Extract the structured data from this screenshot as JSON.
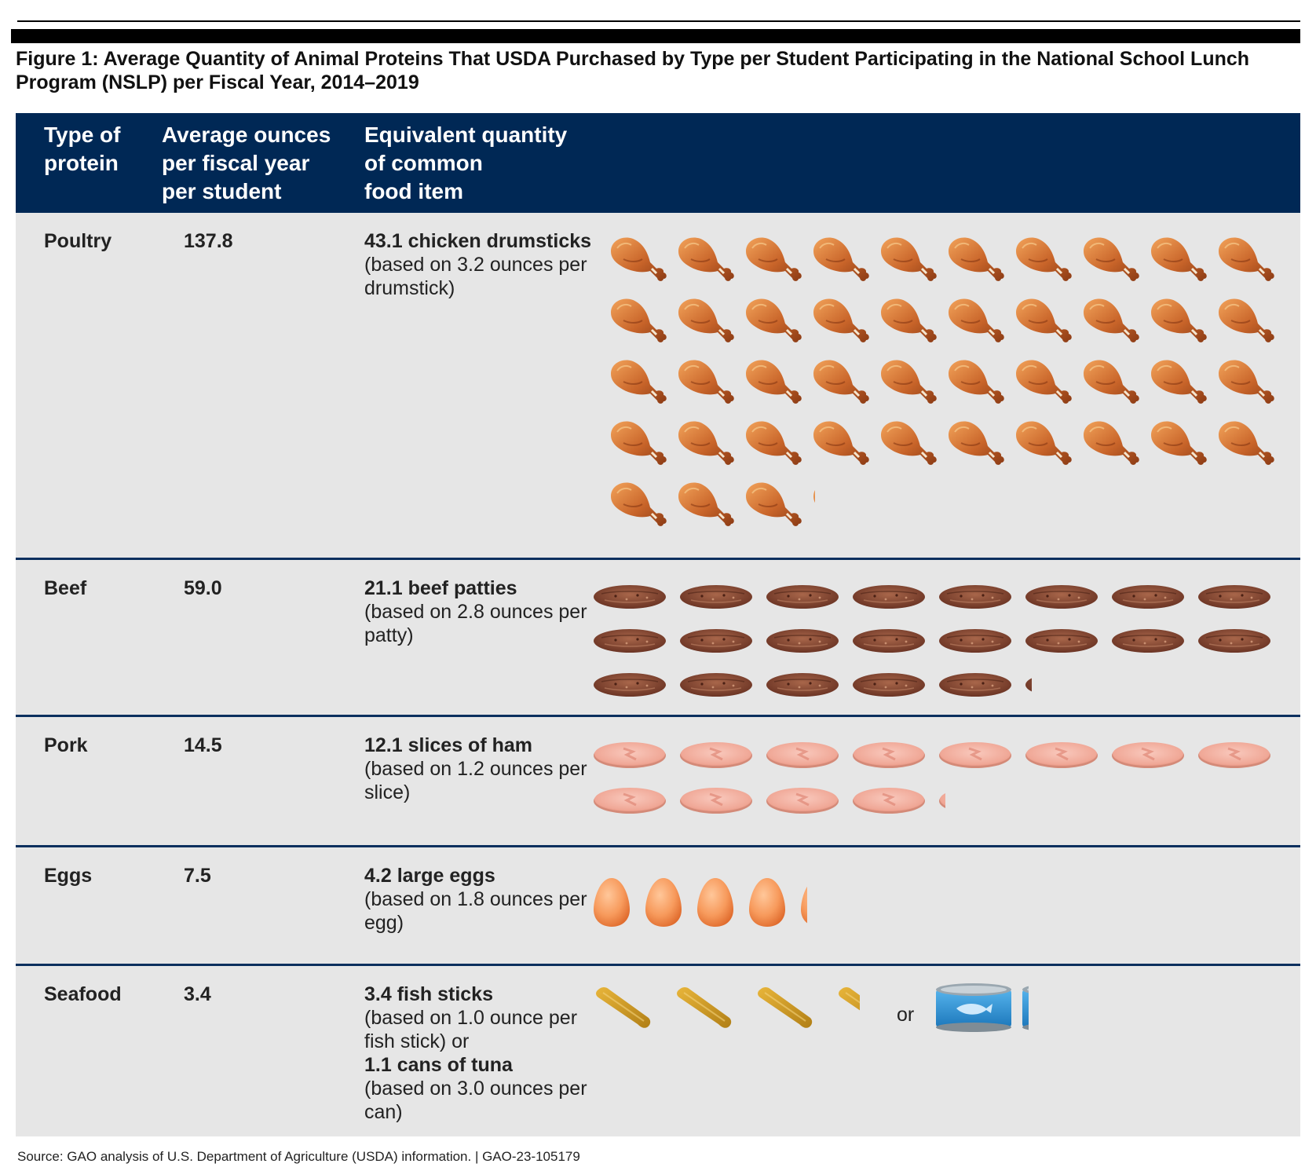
{
  "figure": {
    "title": "Figure 1: Average Quantity of Animal Proteins That USDA Purchased by Type per Student Participating in the National School Lunch Program (NSLP) per Fiscal Year, 2014–2019"
  },
  "table": {
    "header": {
      "type": "Type of\nprotein",
      "ounces": "Average ounces\nper fiscal year\nper student",
      "equivalent": "Equivalent quantity\nof common\nfood item"
    },
    "rows": [
      {
        "type": "Poultry",
        "ounces": "137.8",
        "eq_bold": "43.1 chicken drumsticks",
        "eq_note": "(based on 3.2 ounces per drumstick)",
        "icon": "chicken-drumstick-icon",
        "icon_count": 43.1
      },
      {
        "type": "Beef",
        "ounces": "59.0",
        "eq_bold": "21.1 beef patties",
        "eq_note": "(based on 2.8 ounces per patty)",
        "icon": "beef-patty-icon",
        "icon_count": 21.1
      },
      {
        "type": "Pork",
        "ounces": "14.5",
        "eq_bold": "12.1 slices of ham",
        "eq_note": "(based on 1.2 ounces per slice)",
        "icon": "ham-slice-icon",
        "icon_count": 12.1
      },
      {
        "type": "Eggs",
        "ounces": "7.5",
        "eq_bold": "4.2 large eggs",
        "eq_note": "(based on 1.8 ounces per egg)",
        "icon": "egg-icon",
        "icon_count": 4.2
      },
      {
        "type": "Seafood",
        "ounces": "3.4",
        "eq_bold": "3.4 fish sticks",
        "eq_note": "(based on 1.0 ounce per fish stick) or",
        "eq_bold2": "1.1 cans of tuna",
        "eq_note2": "(based on 3.0 ounces per can)",
        "icon": "fish-stick-icon",
        "icon_count": 3.4,
        "or_label": "or",
        "icon2": "tuna-can-icon",
        "icon2_count": 1.1
      }
    ]
  },
  "colors": {
    "header_bg": "#002855",
    "row_bg": "#e6e6e6",
    "divider": "#0b2f5e"
  },
  "source": "Source: GAO analysis of U.S. Department of Agriculture (USDA) information.  |  GAO-23-105179"
}
